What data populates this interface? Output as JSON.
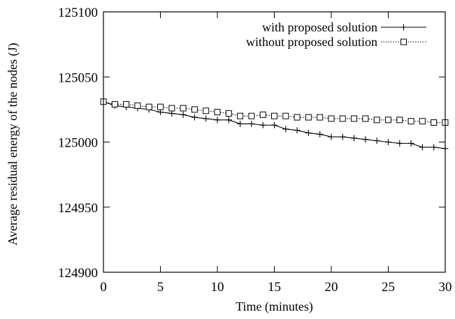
{
  "chart_data": {
    "type": "line",
    "xlabel": "Time (minutes)",
    "ylabel": "Average residual energy of the nodes (J)",
    "xlim": [
      0,
      30
    ],
    "ylim": [
      124900,
      125100
    ],
    "xticks": [
      0,
      5,
      10,
      15,
      20,
      25,
      30
    ],
    "yticks": [
      124900,
      124950,
      125000,
      125050,
      125100
    ],
    "grid": false,
    "legend_position": "top-right",
    "x": [
      0,
      1,
      2,
      3,
      4,
      5,
      6,
      7,
      8,
      9,
      10,
      11,
      12,
      13,
      14,
      15,
      16,
      17,
      18,
      19,
      20,
      21,
      22,
      23,
      24,
      25,
      26,
      27,
      28,
      29,
      30
    ],
    "series": [
      {
        "name": "with proposed solution",
        "marker": "plus",
        "line_style": "solid",
        "color": "#000000",
        "values": [
          125031,
          125028,
          125027,
          125026,
          125025,
          125023,
          125022,
          125021,
          125019,
          125018,
          125017,
          125017,
          125014,
          125014,
          125013,
          125013,
          125010,
          125009,
          125007,
          125006,
          125004,
          125004,
          125003,
          125002,
          125001,
          125000,
          124999,
          124999,
          124996,
          124996,
          124995
        ]
      },
      {
        "name": "without proposed solution",
        "marker": "square",
        "line_style": "dotted",
        "color": "#000000",
        "values": [
          125031,
          125029,
          125029,
          125028,
          125027,
          125027,
          125026,
          125026,
          125025,
          125024,
          125023,
          125022,
          125020,
          125020,
          125021,
          125020,
          125020,
          125019,
          125019,
          125019,
          125018,
          125018,
          125018,
          125018,
          125017,
          125017,
          125017,
          125016,
          125016,
          125015,
          125015
        ]
      }
    ]
  }
}
